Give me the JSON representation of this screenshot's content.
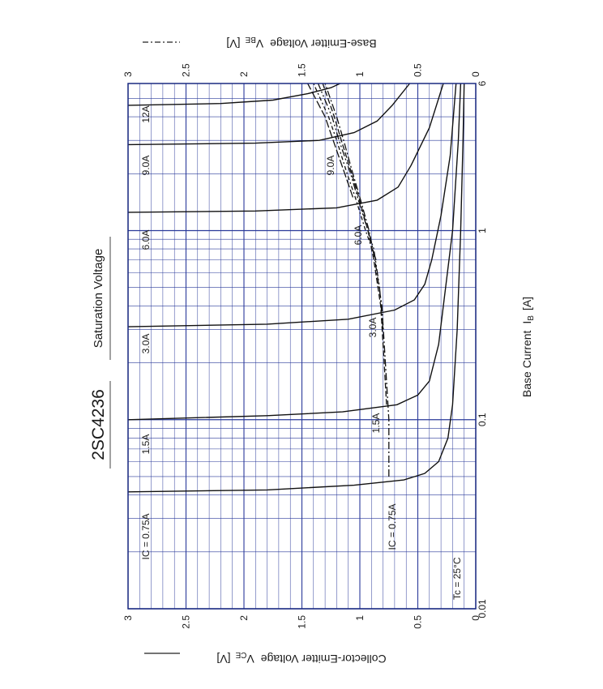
{
  "chart_data": {
    "type": "line",
    "title": "2SC4236",
    "subtitle": "Saturation Voltage",
    "xlabel": "Base Current",
    "xlabel_symbol": "I",
    "xlabel_sub": "B",
    "xlabel_unit": "[A]",
    "x_scale": "log",
    "xlim": [
      0.01,
      6
    ],
    "x_ticks": [
      {
        "v": 0.01,
        "label": "0.01"
      },
      {
        "v": 0.1,
        "label": "0.1"
      },
      {
        "v": 1,
        "label": "1"
      },
      {
        "v": 6,
        "label": "6"
      }
    ],
    "ylim": [
      0,
      3
    ],
    "y_ticks": [
      {
        "v": 0,
        "label": "0"
      },
      {
        "v": 0.5,
        "label": "0.5"
      },
      {
        "v": 1,
        "label": "1"
      },
      {
        "v": 1.5,
        "label": "1.5"
      },
      {
        "v": 2,
        "label": "2"
      },
      {
        "v": 2.5,
        "label": "2.5"
      },
      {
        "v": 3,
        "label": "3"
      }
    ],
    "y_left_label": "Collector-Emitter Voltage",
    "y_left_symbol": "V",
    "y_left_sub": "CE",
    "y_left_unit": "[V]",
    "y_right_label": "Base-Emitter Voltage",
    "y_right_symbol": "V",
    "y_right_sub": "BE",
    "y_right_unit": "[V]",
    "condition": "Tc = 25°C",
    "grid": true,
    "vce_labels": [
      "IC = 0.75A",
      "1.5A",
      "3.0A",
      "6.0A",
      "9.0A",
      "12A"
    ],
    "vbe_labels": [
      "IC = 0.75A",
      "1.5A",
      "3.0A",
      "6.0A",
      "9.0A"
    ],
    "vce_series": [
      {
        "ic": "0.75A",
        "points": [
          [
            0.0415,
            3
          ],
          [
            0.0425,
            1.8
          ],
          [
            0.045,
            1.05
          ],
          [
            0.048,
            0.62
          ],
          [
            0.052,
            0.44
          ],
          [
            0.06,
            0.32
          ],
          [
            0.08,
            0.24
          ],
          [
            0.12,
            0.2
          ],
          [
            0.3,
            0.16
          ],
          [
            1,
            0.13
          ],
          [
            3,
            0.11
          ],
          [
            6,
            0.1
          ]
        ]
      },
      {
        "ic": "1.5A",
        "points": [
          [
            0.1,
            3
          ],
          [
            0.105,
            1.8
          ],
          [
            0.11,
            1.15
          ],
          [
            0.12,
            0.68
          ],
          [
            0.135,
            0.5
          ],
          [
            0.16,
            0.4
          ],
          [
            0.25,
            0.32
          ],
          [
            0.5,
            0.26
          ],
          [
            1,
            0.2
          ],
          [
            3,
            0.15
          ],
          [
            6,
            0.13
          ]
        ]
      },
      {
        "ic": "3.0A",
        "points": [
          [
            0.31,
            3
          ],
          [
            0.32,
            1.8
          ],
          [
            0.34,
            1.1
          ],
          [
            0.38,
            0.7
          ],
          [
            0.43,
            0.53
          ],
          [
            0.52,
            0.44
          ],
          [
            0.7,
            0.38
          ],
          [
            1.2,
            0.3
          ],
          [
            2.5,
            0.22
          ],
          [
            6,
            0.17
          ]
        ]
      },
      {
        "ic": "6.0A",
        "points": [
          [
            1.25,
            3
          ],
          [
            1.27,
            1.9
          ],
          [
            1.32,
            1.2
          ],
          [
            1.45,
            0.85
          ],
          [
            1.7,
            0.67
          ],
          [
            2.2,
            0.56
          ],
          [
            3.5,
            0.4
          ],
          [
            6,
            0.28
          ]
        ]
      },
      {
        "ic": "9.0A",
        "points": [
          [
            2.85,
            3
          ],
          [
            2.9,
            1.9
          ],
          [
            3.0,
            1.35
          ],
          [
            3.3,
            1.05
          ],
          [
            3.8,
            0.85
          ],
          [
            4.6,
            0.72
          ],
          [
            6,
            0.57
          ]
        ]
      },
      {
        "ic": "12A",
        "points": [
          [
            4.6,
            3
          ],
          [
            4.7,
            2.2
          ],
          [
            4.9,
            1.75
          ],
          [
            5.3,
            1.45
          ],
          [
            5.7,
            1.25
          ],
          [
            6,
            1.17
          ]
        ]
      }
    ],
    "vbe_series": [
      {
        "ic": "0.75A",
        "points": [
          [
            0.05,
            0.75
          ],
          [
            0.1,
            0.75
          ],
          [
            0.2,
            0.78
          ],
          [
            0.4,
            0.81
          ],
          [
            0.7,
            0.87
          ],
          [
            1,
            0.92
          ],
          [
            1.5,
            1.0
          ],
          [
            2,
            1.06
          ],
          [
            3,
            1.14
          ],
          [
            4,
            1.2
          ],
          [
            6,
            1.3
          ]
        ]
      },
      {
        "ic": "1.5A",
        "points": [
          [
            0.12,
            0.77
          ],
          [
            0.2,
            0.79
          ],
          [
            0.4,
            0.82
          ],
          [
            0.7,
            0.88
          ],
          [
            1,
            0.93
          ],
          [
            1.5,
            1.01
          ],
          [
            2,
            1.07
          ],
          [
            3,
            1.16
          ],
          [
            4,
            1.22
          ],
          [
            6,
            1.32
          ]
        ]
      },
      {
        "ic": "3.0A",
        "points": [
          [
            0.3,
            0.8
          ],
          [
            0.5,
            0.83
          ],
          [
            0.8,
            0.88
          ],
          [
            1,
            0.93
          ],
          [
            1.5,
            1.02
          ],
          [
            2,
            1.08
          ],
          [
            3,
            1.18
          ],
          [
            4,
            1.24
          ],
          [
            6,
            1.36
          ]
        ]
      },
      {
        "ic": "6.0A",
        "points": [
          [
            0.7,
            0.86
          ],
          [
            1,
            0.95
          ],
          [
            1.5,
            1.04
          ],
          [
            2,
            1.11
          ],
          [
            3,
            1.2
          ],
          [
            4,
            1.27
          ],
          [
            6,
            1.4
          ]
        ]
      },
      {
        "ic": "9.0A",
        "points": [
          [
            1.5,
            1.06
          ],
          [
            2,
            1.13
          ],
          [
            3,
            1.23
          ],
          [
            4,
            1.3
          ],
          [
            6,
            1.45
          ]
        ]
      }
    ]
  }
}
